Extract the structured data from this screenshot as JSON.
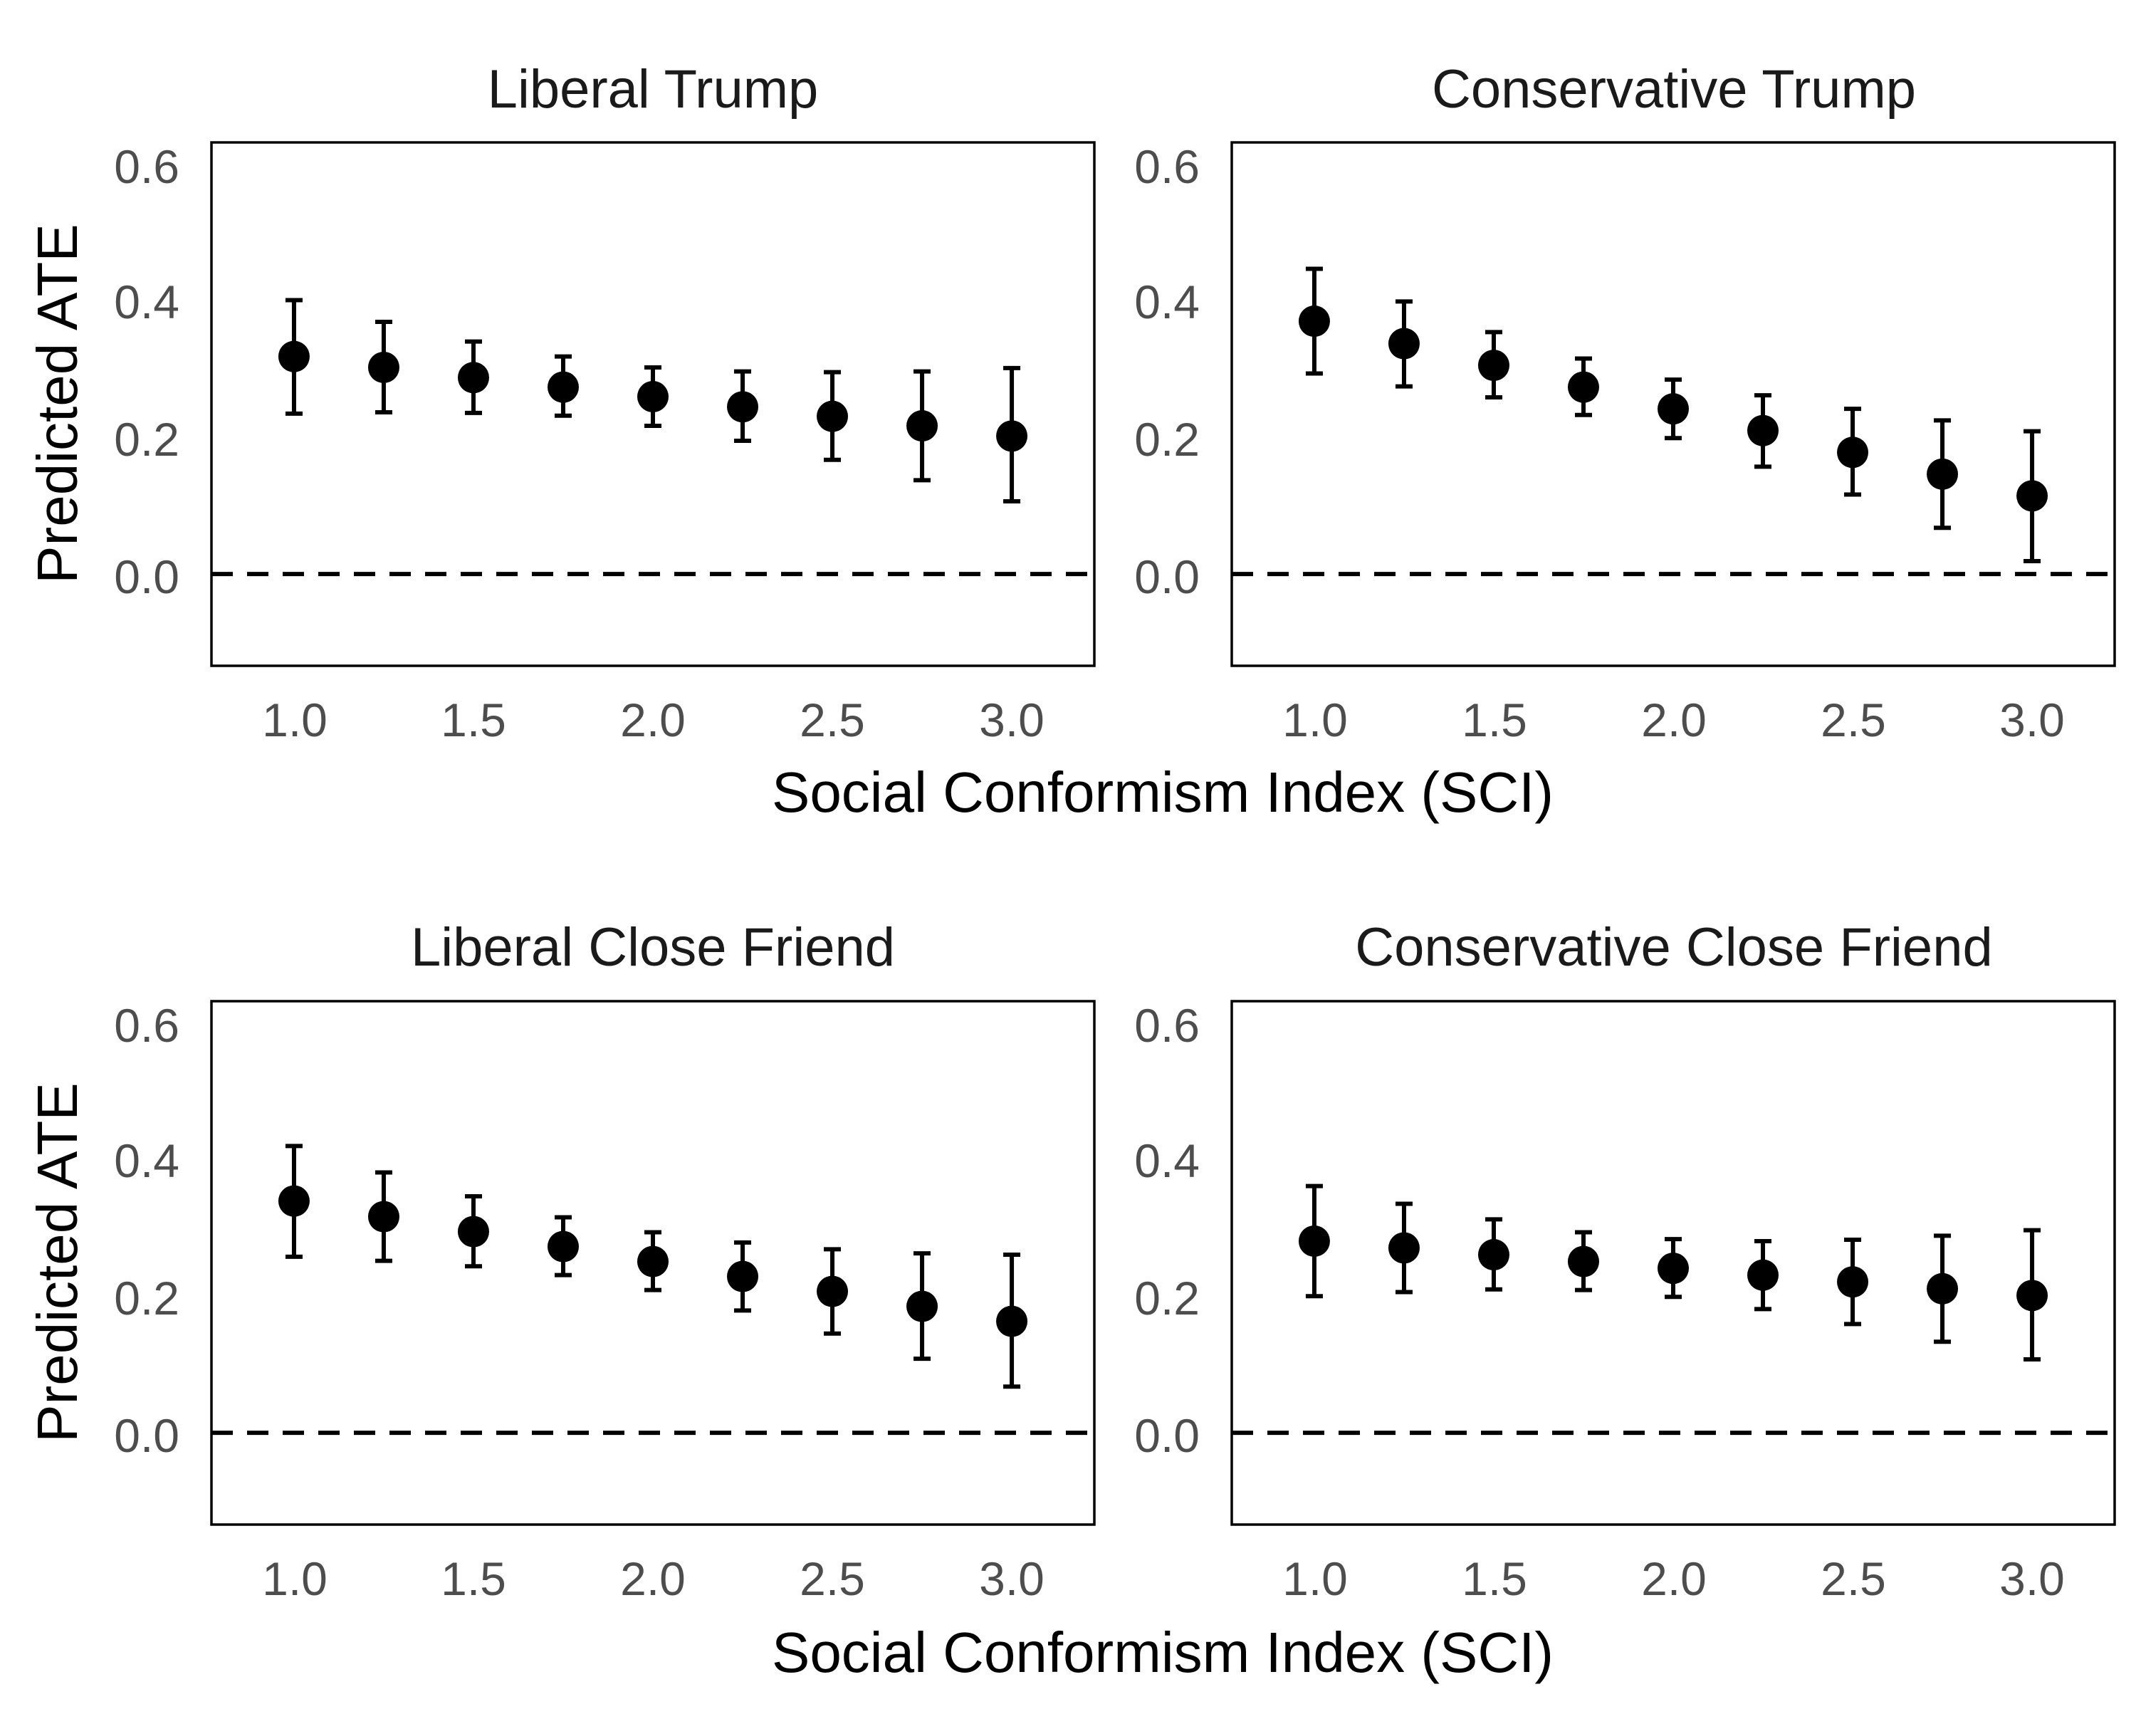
{
  "chart_data": [
    {
      "type": "scatter",
      "title": "Liberal Trump",
      "xlabel": "Social Conformism Index (SCI)",
      "ylabel": "Predicted ATE",
      "xlim": [
        0.77,
        3.23
      ],
      "ylim": [
        -0.135,
        0.635
      ],
      "xticks": [
        "1.0",
        "1.5",
        "2.0",
        "2.5",
        "3.0"
      ],
      "yticks": [
        "0.0",
        "0.2",
        "0.4",
        "0.6"
      ],
      "reference_line": {
        "y": 0.0,
        "style": "dashed"
      },
      "x": [
        1.0,
        1.25,
        1.5,
        1.75,
        2.0,
        2.25,
        2.5,
        2.75,
        3.0
      ],
      "y": [
        0.32,
        0.304,
        0.289,
        0.275,
        0.261,
        0.246,
        0.232,
        0.218,
        0.203
      ],
      "lower": [
        0.236,
        0.238,
        0.237,
        0.233,
        0.218,
        0.196,
        0.168,
        0.138,
        0.107
      ],
      "upper": [
        0.403,
        0.371,
        0.342,
        0.32,
        0.304,
        0.298,
        0.297,
        0.298,
        0.303
      ]
    },
    {
      "type": "scatter",
      "title": "Conservative Trump",
      "xlabel": "Social Conformism Index (SCI)",
      "ylabel": "Predicted ATE",
      "xlim": [
        0.77,
        3.23
      ],
      "ylim": [
        -0.135,
        0.635
      ],
      "xticks": [
        "1.0",
        "1.5",
        "2.0",
        "2.5",
        "3.0"
      ],
      "yticks": [
        "0.0",
        "0.2",
        "0.4",
        "0.6"
      ],
      "reference_line": {
        "y": 0.0,
        "style": "dashed"
      },
      "x": [
        1.0,
        1.25,
        1.5,
        1.75,
        2.0,
        2.25,
        2.5,
        2.75,
        3.0
      ],
      "y": [
        0.372,
        0.339,
        0.307,
        0.275,
        0.243,
        0.211,
        0.179,
        0.147,
        0.115
      ],
      "lower": [
        0.295,
        0.276,
        0.26,
        0.234,
        0.2,
        0.158,
        0.117,
        0.068,
        0.019
      ],
      "upper": [
        0.449,
        0.401,
        0.356,
        0.317,
        0.286,
        0.263,
        0.243,
        0.226,
        0.21
      ]
    },
    {
      "type": "scatter",
      "title": "Liberal Close Friend",
      "xlabel": "Social Conformism Index (SCI)",
      "ylabel": "Predicted ATE",
      "xlim": [
        0.77,
        3.23
      ],
      "ylim": [
        -0.135,
        0.635
      ],
      "xticks": [
        "1.0",
        "1.5",
        "2.0",
        "2.5",
        "3.0"
      ],
      "yticks": [
        "0.0",
        "0.2",
        "0.4",
        "0.6"
      ],
      "reference_line": {
        "y": 0.0,
        "style": "dashed"
      },
      "x": [
        1.0,
        1.25,
        1.5,
        1.75,
        2.0,
        2.25,
        2.5,
        2.75,
        3.0
      ],
      "y": [
        0.341,
        0.318,
        0.296,
        0.274,
        0.252,
        0.23,
        0.208,
        0.186,
        0.164
      ],
      "lower": [
        0.259,
        0.253,
        0.245,
        0.232,
        0.21,
        0.18,
        0.146,
        0.109,
        0.068
      ],
      "upper": [
        0.422,
        0.383,
        0.348,
        0.317,
        0.295,
        0.28,
        0.27,
        0.264,
        0.262
      ]
    },
    {
      "type": "scatter",
      "title": "Conservative Close Friend",
      "xlabel": "Social Conformism Index (SCI)",
      "ylabel": "Predicted ATE",
      "xlim": [
        0.77,
        3.23
      ],
      "ylim": [
        -0.135,
        0.635
      ],
      "xticks": [
        "1.0",
        "1.5",
        "2.0",
        "2.5",
        "3.0"
      ],
      "yticks": [
        "0.0",
        "0.2",
        "0.4",
        "0.6"
      ],
      "reference_line": {
        "y": 0.0,
        "style": "dashed"
      },
      "x": [
        1.0,
        1.25,
        1.5,
        1.75,
        2.0,
        2.25,
        2.5,
        2.75,
        3.0
      ],
      "y": [
        0.282,
        0.272,
        0.262,
        0.252,
        0.242,
        0.232,
        0.222,
        0.212,
        0.202
      ],
      "lower": [
        0.201,
        0.207,
        0.211,
        0.21,
        0.2,
        0.182,
        0.16,
        0.134,
        0.108
      ],
      "upper": [
        0.363,
        0.337,
        0.314,
        0.295,
        0.285,
        0.282,
        0.284,
        0.29,
        0.298
      ]
    }
  ],
  "shared": {
    "xlabel": "Social Conformism Index (SCI)",
    "ylabel": "Predicted ATE"
  }
}
